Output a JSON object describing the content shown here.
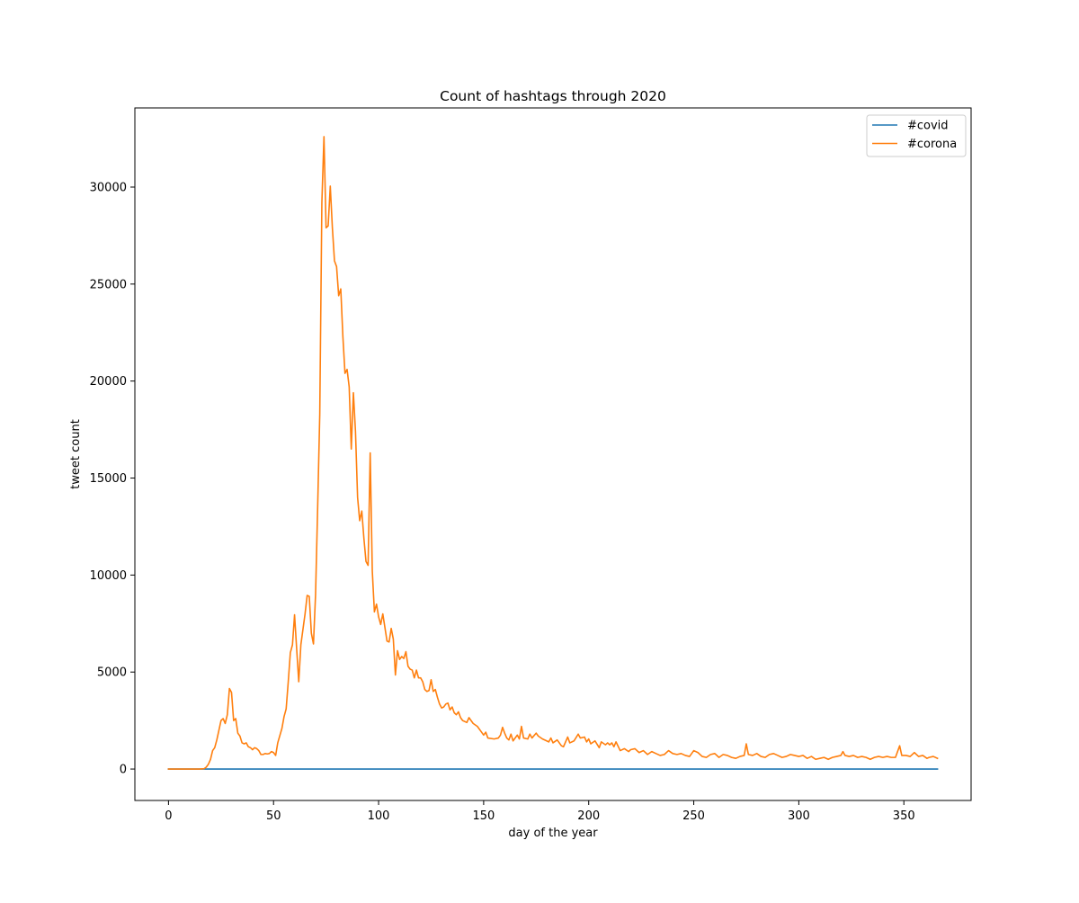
{
  "chart_data": {
    "type": "line",
    "title": "Count of hashtags through 2020",
    "xlabel": "day of the year",
    "ylabel": "tweet count",
    "xlim": [
      -16,
      382
    ],
    "ylim": [
      -1620,
      34080
    ],
    "xticks": [
      0,
      50,
      100,
      150,
      200,
      250,
      300,
      350
    ],
    "yticks": [
      0,
      5000,
      10000,
      15000,
      20000,
      25000,
      30000
    ],
    "grid": false,
    "legend_position": "top-right",
    "series": [
      {
        "name": "#covid",
        "color": "#1f77b4",
        "points": [
          [
            0,
            0
          ],
          [
            366,
            0
          ]
        ]
      },
      {
        "name": "#corona",
        "color": "#ff7f0e",
        "points": [
          [
            0,
            0
          ],
          [
            5,
            0
          ],
          [
            10,
            0
          ],
          [
            15,
            0
          ],
          [
            17,
            20
          ],
          [
            18,
            100
          ],
          [
            19,
            250
          ],
          [
            20,
            500
          ],
          [
            21,
            950
          ],
          [
            22,
            1100
          ],
          [
            23,
            1500
          ],
          [
            24,
            2000
          ],
          [
            25,
            2500
          ],
          [
            26,
            2600
          ],
          [
            27,
            2350
          ],
          [
            28,
            2800
          ],
          [
            29,
            4150
          ],
          [
            30,
            3950
          ],
          [
            31,
            2500
          ],
          [
            32,
            2600
          ],
          [
            33,
            1850
          ],
          [
            34,
            1700
          ],
          [
            35,
            1350
          ],
          [
            36,
            1300
          ],
          [
            37,
            1350
          ],
          [
            38,
            1150
          ],
          [
            39,
            1100
          ],
          [
            40,
            1000
          ],
          [
            41,
            1100
          ],
          [
            42,
            1050
          ],
          [
            43,
            950
          ],
          [
            44,
            750
          ],
          [
            45,
            750
          ],
          [
            46,
            800
          ],
          [
            47,
            780
          ],
          [
            48,
            800
          ],
          [
            49,
            900
          ],
          [
            50,
            850
          ],
          [
            51,
            700
          ],
          [
            52,
            1350
          ],
          [
            54,
            2100
          ],
          [
            55,
            2700
          ],
          [
            56,
            3100
          ],
          [
            57,
            4500
          ],
          [
            58,
            6000
          ],
          [
            59,
            6400
          ],
          [
            60,
            7950
          ],
          [
            61,
            6200
          ],
          [
            62,
            4500
          ],
          [
            63,
            6400
          ],
          [
            64,
            7200
          ],
          [
            65,
            8000
          ],
          [
            66,
            8950
          ],
          [
            67,
            8900
          ],
          [
            68,
            7000
          ],
          [
            69,
            6450
          ],
          [
            70,
            9000
          ],
          [
            71,
            13500
          ],
          [
            72,
            18300
          ],
          [
            73,
            29200
          ],
          [
            74,
            32600
          ],
          [
            75,
            27900
          ],
          [
            76,
            28000
          ],
          [
            77,
            30050
          ],
          [
            78,
            27900
          ],
          [
            79,
            26200
          ],
          [
            80,
            25900
          ],
          [
            81,
            24400
          ],
          [
            82,
            24750
          ],
          [
            83,
            22300
          ],
          [
            84,
            20400
          ],
          [
            85,
            20600
          ],
          [
            86,
            19700
          ],
          [
            87,
            16500
          ],
          [
            88,
            19400
          ],
          [
            89,
            17400
          ],
          [
            90,
            14000
          ],
          [
            91,
            12800
          ],
          [
            92,
            13300
          ],
          [
            93,
            11900
          ],
          [
            94,
            10700
          ],
          [
            95,
            10500
          ],
          [
            96,
            16300
          ],
          [
            97,
            10200
          ],
          [
            98,
            8100
          ],
          [
            99,
            8500
          ],
          [
            100,
            7850
          ],
          [
            101,
            7450
          ],
          [
            102,
            8000
          ],
          [
            103,
            7300
          ],
          [
            104,
            6600
          ],
          [
            105,
            6550
          ],
          [
            106,
            7250
          ],
          [
            107,
            6700
          ],
          [
            108,
            4850
          ],
          [
            109,
            6100
          ],
          [
            110,
            5650
          ],
          [
            111,
            5800
          ],
          [
            112,
            5700
          ],
          [
            113,
            6050
          ],
          [
            114,
            5300
          ],
          [
            115,
            5150
          ],
          [
            116,
            5100
          ],
          [
            117,
            4700
          ],
          [
            118,
            5100
          ],
          [
            119,
            4700
          ],
          [
            120,
            4700
          ],
          [
            121,
            4500
          ],
          [
            122,
            4100
          ],
          [
            123,
            4000
          ],
          [
            124,
            4050
          ],
          [
            125,
            4600
          ],
          [
            126,
            4000
          ],
          [
            127,
            4100
          ],
          [
            128,
            3700
          ],
          [
            129,
            3350
          ],
          [
            130,
            3150
          ],
          [
            131,
            3200
          ],
          [
            132,
            3350
          ],
          [
            133,
            3400
          ],
          [
            134,
            3050
          ],
          [
            135,
            3200
          ],
          [
            136,
            2900
          ],
          [
            137,
            2800
          ],
          [
            138,
            2950
          ],
          [
            139,
            2650
          ],
          [
            140,
            2500
          ],
          [
            142,
            2400
          ],
          [
            143,
            2650
          ],
          [
            145,
            2350
          ],
          [
            147,
            2200
          ],
          [
            149,
            1900
          ],
          [
            150,
            1750
          ],
          [
            151,
            1900
          ],
          [
            152,
            1600
          ],
          [
            155,
            1550
          ],
          [
            157,
            1600
          ],
          [
            158,
            1750
          ],
          [
            159,
            2150
          ],
          [
            160,
            1850
          ],
          [
            161,
            1600
          ],
          [
            162,
            1500
          ],
          [
            163,
            1800
          ],
          [
            164,
            1450
          ],
          [
            166,
            1750
          ],
          [
            167,
            1550
          ],
          [
            168,
            2200
          ],
          [
            169,
            1600
          ],
          [
            171,
            1550
          ],
          [
            172,
            1800
          ],
          [
            173,
            1600
          ],
          [
            175,
            1850
          ],
          [
            176,
            1700
          ],
          [
            178,
            1550
          ],
          [
            180,
            1450
          ],
          [
            181,
            1400
          ],
          [
            182,
            1600
          ],
          [
            183,
            1350
          ],
          [
            185,
            1500
          ],
          [
            187,
            1200
          ],
          [
            188,
            1150
          ],
          [
            190,
            1650
          ],
          [
            191,
            1350
          ],
          [
            193,
            1450
          ],
          [
            195,
            1800
          ],
          [
            196,
            1600
          ],
          [
            198,
            1650
          ],
          [
            199,
            1400
          ],
          [
            200,
            1550
          ],
          [
            201,
            1300
          ],
          [
            203,
            1450
          ],
          [
            205,
            1100
          ],
          [
            206,
            1400
          ],
          [
            208,
            1250
          ],
          [
            209,
            1350
          ],
          [
            210,
            1250
          ],
          [
            211,
            1350
          ],
          [
            212,
            1150
          ],
          [
            213,
            1400
          ],
          [
            215,
            950
          ],
          [
            217,
            1050
          ],
          [
            219,
            900
          ],
          [
            220,
            1000
          ],
          [
            222,
            1050
          ],
          [
            224,
            850
          ],
          [
            226,
            950
          ],
          [
            228,
            750
          ],
          [
            230,
            900
          ],
          [
            232,
            800
          ],
          [
            234,
            700
          ],
          [
            236,
            750
          ],
          [
            238,
            950
          ],
          [
            240,
            800
          ],
          [
            242,
            750
          ],
          [
            244,
            800
          ],
          [
            246,
            700
          ],
          [
            248,
            650
          ],
          [
            250,
            950
          ],
          [
            252,
            850
          ],
          [
            254,
            650
          ],
          [
            256,
            600
          ],
          [
            258,
            750
          ],
          [
            260,
            800
          ],
          [
            262,
            600
          ],
          [
            264,
            750
          ],
          [
            266,
            700
          ],
          [
            268,
            600
          ],
          [
            270,
            550
          ],
          [
            272,
            650
          ],
          [
            274,
            700
          ],
          [
            275,
            1300
          ],
          [
            276,
            750
          ],
          [
            278,
            700
          ],
          [
            280,
            800
          ],
          [
            282,
            650
          ],
          [
            284,
            600
          ],
          [
            286,
            750
          ],
          [
            288,
            800
          ],
          [
            290,
            700
          ],
          [
            292,
            600
          ],
          [
            294,
            650
          ],
          [
            296,
            750
          ],
          [
            298,
            700
          ],
          [
            300,
            650
          ],
          [
            302,
            700
          ],
          [
            304,
            550
          ],
          [
            306,
            650
          ],
          [
            308,
            500
          ],
          [
            310,
            550
          ],
          [
            312,
            600
          ],
          [
            314,
            500
          ],
          [
            316,
            600
          ],
          [
            318,
            650
          ],
          [
            320,
            700
          ],
          [
            321,
            900
          ],
          [
            322,
            700
          ],
          [
            324,
            650
          ],
          [
            326,
            700
          ],
          [
            328,
            600
          ],
          [
            330,
            650
          ],
          [
            332,
            600
          ],
          [
            334,
            500
          ],
          [
            336,
            600
          ],
          [
            338,
            650
          ],
          [
            340,
            600
          ],
          [
            342,
            650
          ],
          [
            344,
            600
          ],
          [
            346,
            600
          ],
          [
            348,
            1200
          ],
          [
            349,
            700
          ],
          [
            351,
            700
          ],
          [
            353,
            650
          ],
          [
            355,
            850
          ],
          [
            357,
            650
          ],
          [
            359,
            700
          ],
          [
            361,
            550
          ],
          [
            362,
            600
          ],
          [
            364,
            650
          ],
          [
            366,
            550
          ]
        ]
      }
    ]
  }
}
